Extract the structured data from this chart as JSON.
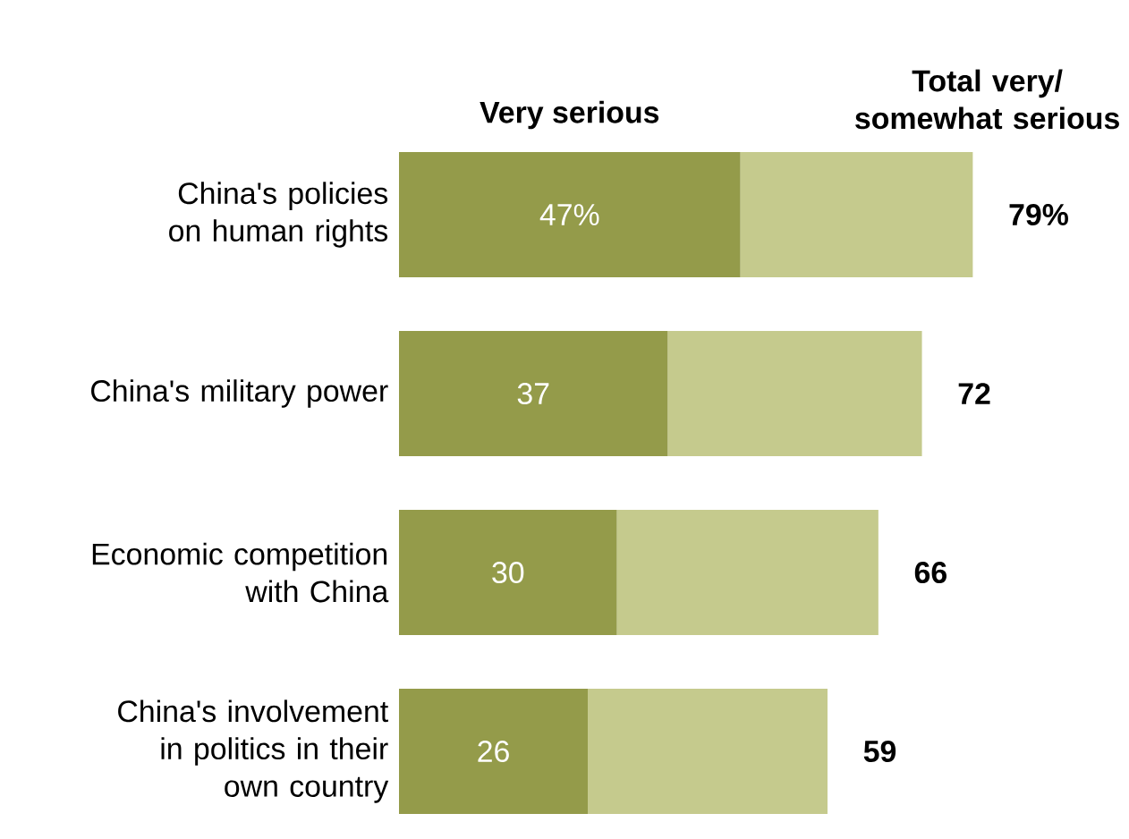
{
  "chart_data": {
    "type": "bar",
    "orientation": "horizontal",
    "stacked": true,
    "categories": [
      "China's policies on human rights",
      "China's military power",
      "Economic competition with China",
      "China's involvement in politics in their own country"
    ],
    "series": [
      {
        "name": "Very serious",
        "color": "#949b4a",
        "values": [
          47,
          37,
          30,
          26
        ],
        "value_labels": [
          "47%",
          "37",
          "30",
          "26"
        ]
      },
      {
        "color": "#c5ca8d",
        "values": [
          32,
          35,
          36,
          33
        ]
      }
    ],
    "totals": [
      "79%",
      "72",
      "66",
      "59"
    ],
    "annotations": [
      "Total very/ somewhat serious"
    ],
    "tick_labels": "y",
    "grid": false
  }
}
